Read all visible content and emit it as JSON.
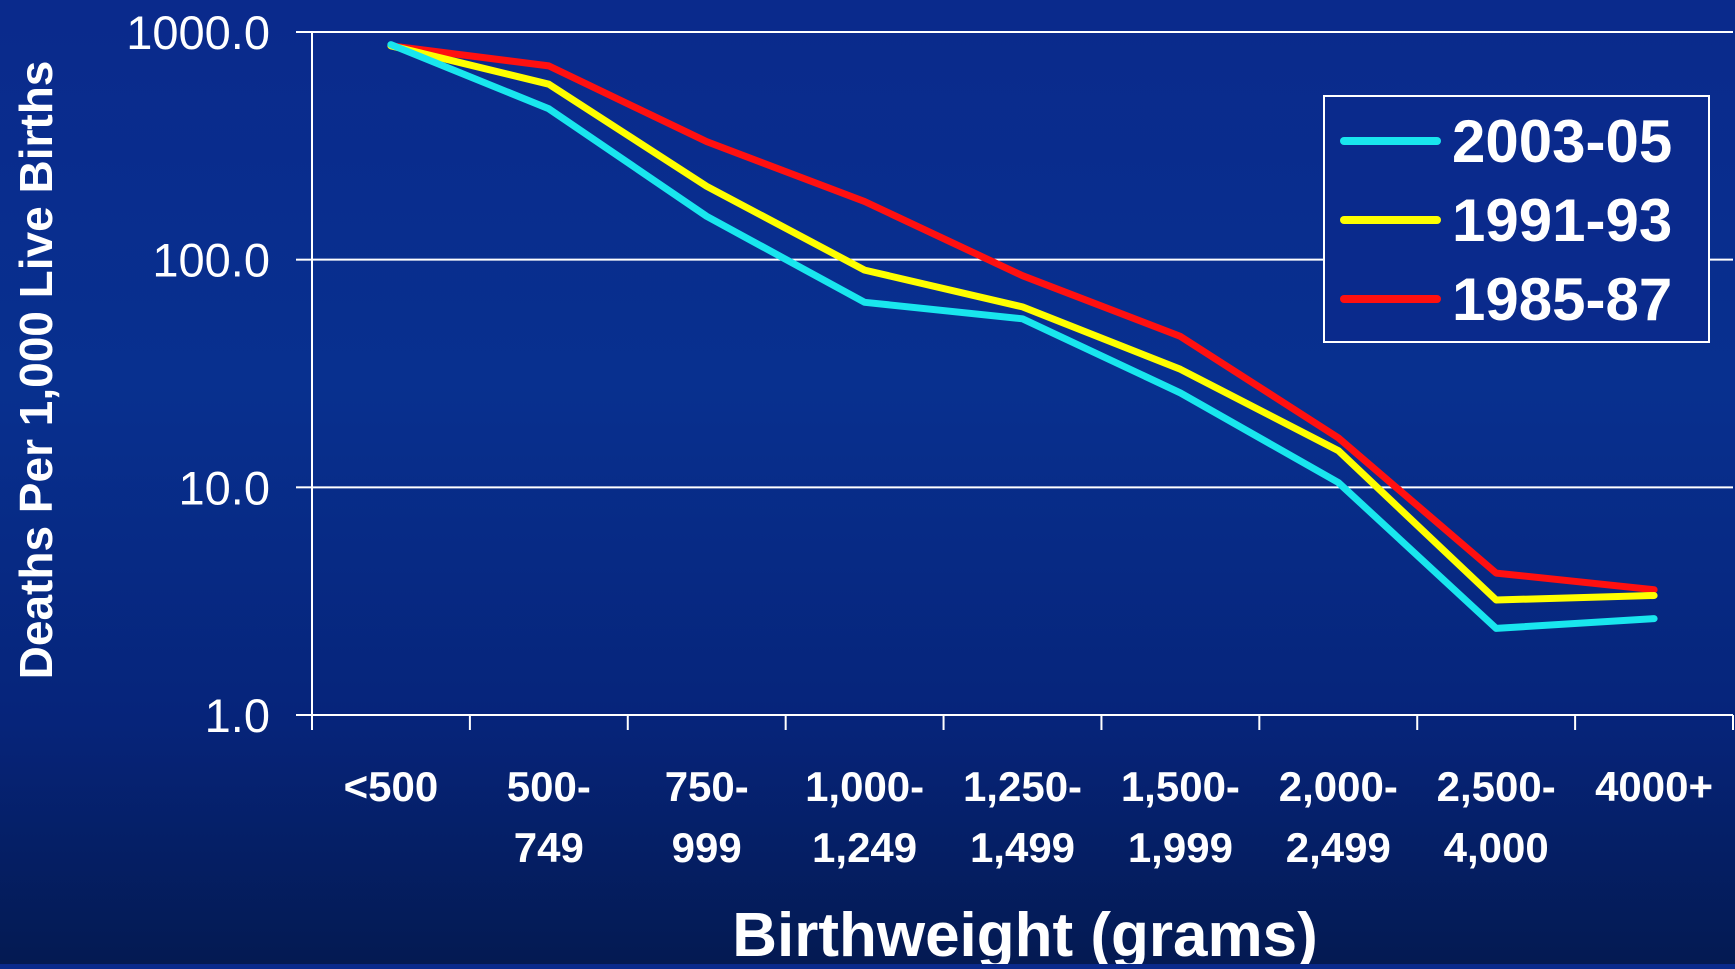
{
  "chart_data": {
    "type": "line",
    "title": "",
    "xlabel": "Birthweight (grams)",
    "ylabel": "Deaths Per 1,000 Live Births",
    "yscale": "log",
    "ylim": [
      1.0,
      1000.0
    ],
    "yticks": [
      "1.0",
      "10.0",
      "100.0",
      "1000.0"
    ],
    "grid": "horizontal",
    "legend_position": "top-right",
    "categories": [
      [
        "<500"
      ],
      [
        "500-",
        "749"
      ],
      [
        "750-",
        "999"
      ],
      [
        "1,000-",
        "1,249"
      ],
      [
        "1,250-",
        "1,499"
      ],
      [
        "1,500-",
        "1,999"
      ],
      [
        "2,000-",
        "2,499"
      ],
      [
        "2,500-",
        "4,000"
      ],
      [
        "4000+"
      ]
    ],
    "series": [
      {
        "name": "2003-05",
        "color": "#19e6ee",
        "values": [
          880,
          460,
          155,
          65,
          55,
          26,
          10.5,
          2.4,
          2.65
        ]
      },
      {
        "name": "1991-93",
        "color": "#ffff00",
        "values": [
          870,
          590,
          210,
          90,
          62,
          33,
          14.5,
          3.2,
          3.35
        ]
      },
      {
        "name": "1985-87",
        "color": "#ff1010",
        "values": [
          870,
          710,
          330,
          180,
          85,
          46,
          16.5,
          4.2,
          3.55
        ]
      }
    ]
  }
}
